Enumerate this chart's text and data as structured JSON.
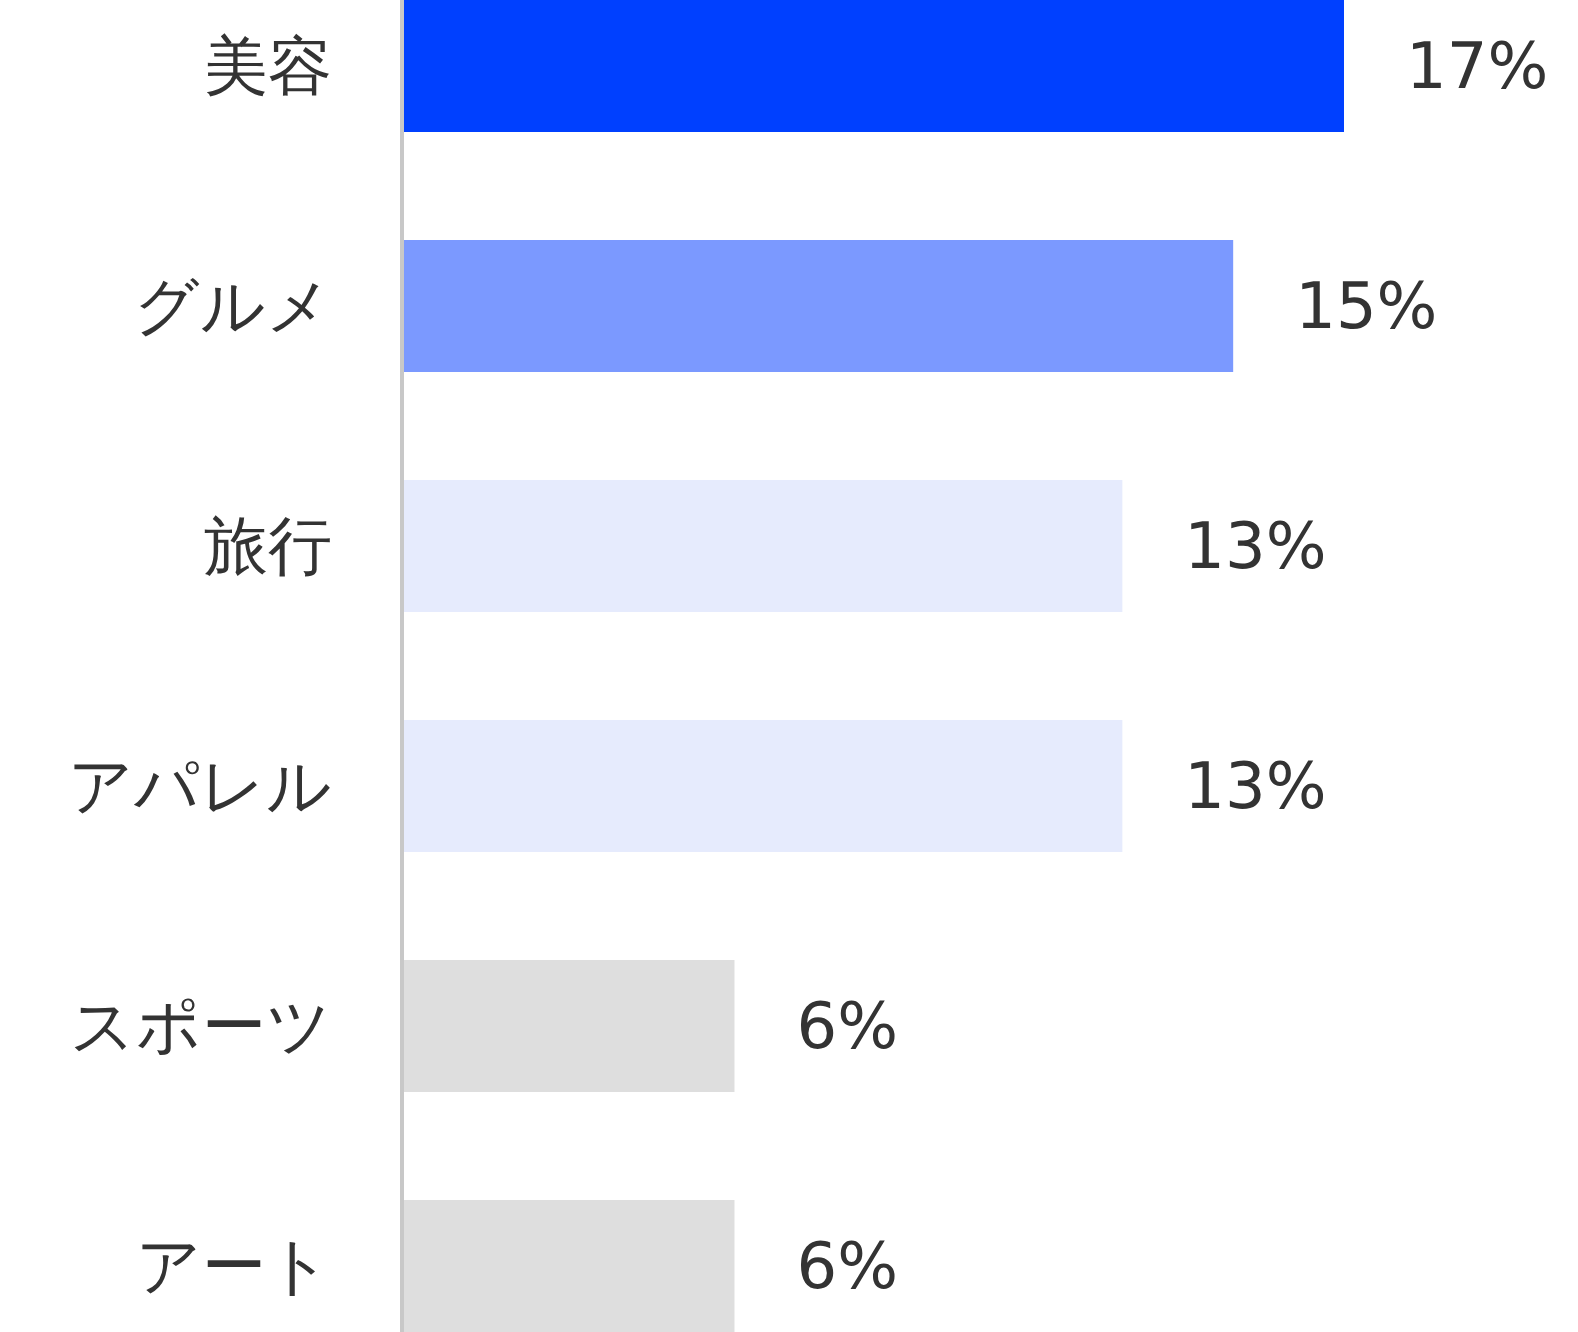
{
  "chart_data": {
    "type": "bar",
    "orientation": "horizontal",
    "categories": [
      "美容",
      "グルメ",
      "旅行",
      "アパレル",
      "スポーツ",
      "アート"
    ],
    "values": [
      17,
      15,
      13,
      13,
      6,
      6
    ],
    "colors": [
      "#0040ff",
      "#7b99ff",
      "#e6ebfd",
      "#e6ebfd",
      "#dedede",
      "#dedede"
    ],
    "value_labels": [
      "17%",
      "15%",
      "13%",
      "13%",
      "6%",
      "6%"
    ]
  }
}
